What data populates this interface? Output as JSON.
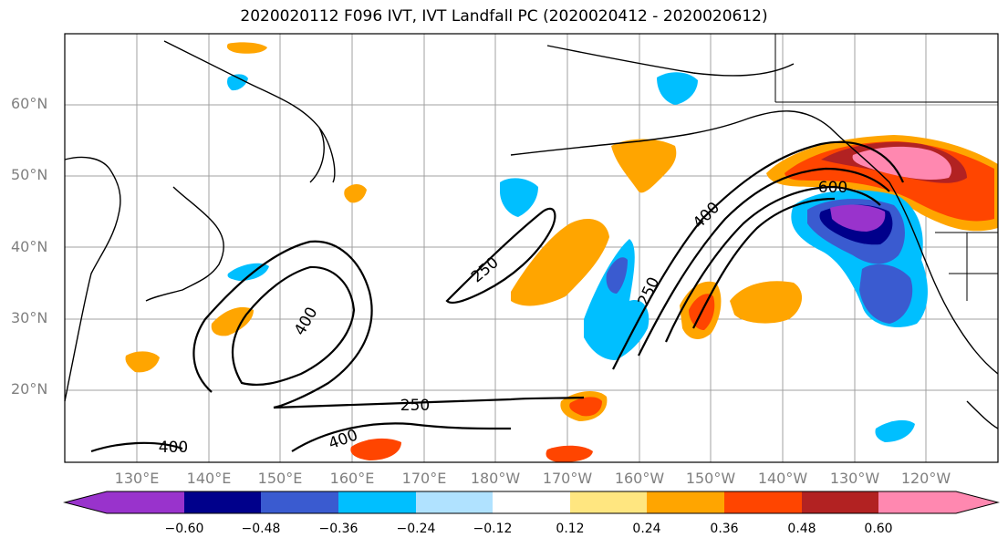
{
  "title": "2020020112 F096 IVT, IVT Landfall PC (2020020412 - 2020020612)",
  "lat_labels": [
    "60°N",
    "50°N",
    "40°N",
    "30°N",
    "20°N"
  ],
  "lon_labels": [
    "130°E",
    "140°E",
    "150°E",
    "160°E",
    "170°E",
    "180°W",
    "170°W",
    "160°W",
    "150°W",
    "140°W",
    "130°W",
    "120°W"
  ],
  "contour_labels": [
    "250",
    "400",
    "250",
    "400",
    "400",
    "250",
    "400",
    "600"
  ],
  "colorbar": {
    "ticks": [
      "−0.60",
      "−0.48",
      "−0.36",
      "−0.24",
      "−0.12",
      "0.12",
      "0.24",
      "0.36",
      "0.48",
      "0.60"
    ],
    "colors": [
      "#9933cc",
      "#00008b",
      "#3a5bd0",
      "#00bfff",
      "#b0e2ff",
      "#ffffff",
      "#ffe680",
      "#ffa500",
      "#ff4500",
      "#b22222",
      "#ff88b0"
    ]
  },
  "colors": {
    "orange": "#ffa500",
    "red": "#ff4500",
    "darkred": "#b22222",
    "pink": "#ff88b0",
    "yellow": "#ffe680",
    "skyblue": "#00bfff",
    "lightblue": "#b0e2ff",
    "blue": "#3a5bd0",
    "navy": "#00008b",
    "purple": "#9933cc"
  }
}
